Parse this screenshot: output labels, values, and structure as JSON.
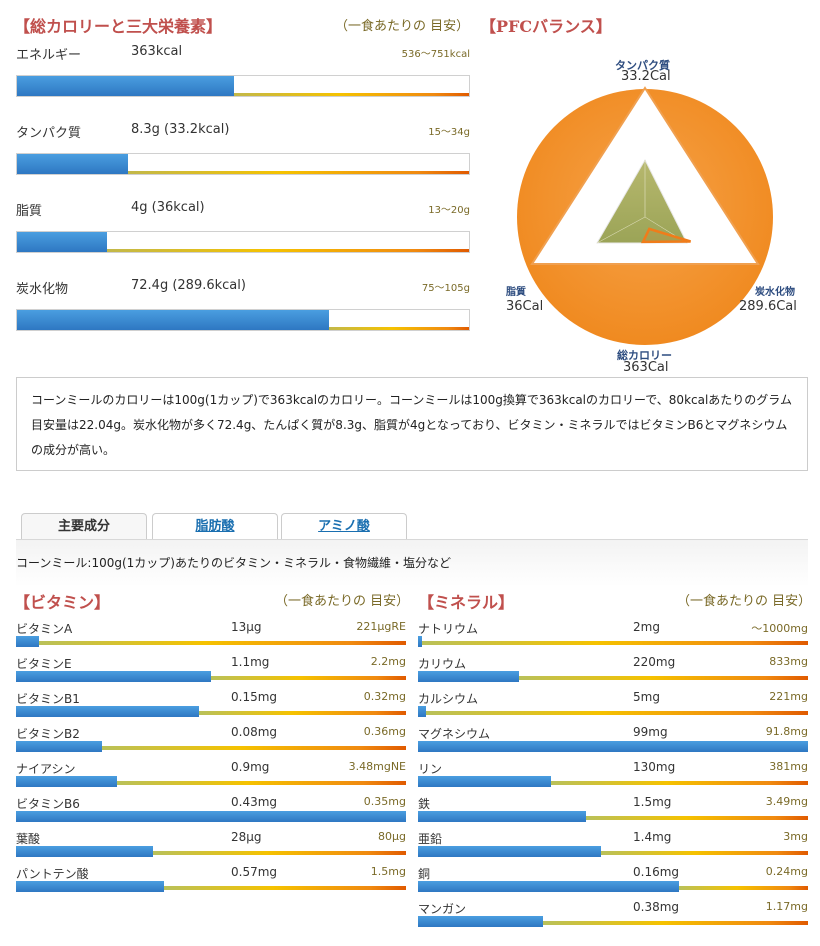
{
  "macro": {
    "title": "【総カロリーと三大栄養素】",
    "per_serving": "（一食あたりの 目安）",
    "rows": [
      {
        "name": "エネルギー",
        "value": "363kcal",
        "range": "536〜751kcal",
        "fill": 0.48
      },
      {
        "name": "タンパク質",
        "value": "8.3g (33.2kcal)",
        "range": "15〜34g",
        "fill": 0.245
      },
      {
        "name": "脂質",
        "value": "4g (36kcal)",
        "range": "13〜20g",
        "fill": 0.2
      },
      {
        "name": "炭水化物",
        "value": "72.4g (289.6kcal)",
        "range": "75〜105g",
        "fill": 0.69
      }
    ]
  },
  "pfc": {
    "title": "【PFCバランス】",
    "protein_label": "タンパク質",
    "protein_value": "33.2Cal",
    "fat_label": "脂質",
    "fat_value": "36Cal",
    "carb_label": "炭水化物",
    "carb_value": "289.6Cal",
    "total_label": "総カロリー",
    "total_value": "363Cal",
    "colors": {
      "circle": "#f4952e",
      "inner": "#a7ab5c",
      "outline": "#f07c1a"
    }
  },
  "description": "コーンミールのカロリーは100g(1カップ)で363kcalのカロリー。コーンミールは100g換算で363kcalのカロリーで、80kcalあたりのグラム 目安量は22.04g。炭水化物が多く72.4g、たんぱく質が8.3g、脂質が4gとなっており、ビタミン・ミネラルではビタミンB6とマグネシウムの成分が高い。",
  "tabs": [
    {
      "label": "主要成分",
      "active": true
    },
    {
      "label": "脂肪酸",
      "active": false
    },
    {
      "label": "アミノ酸",
      "active": false
    }
  ],
  "tab_caption": "コーンミール:100g(1カップ)あたりのビタミン・ミネラル・食物繊維・塩分など",
  "vitamins": {
    "title": "【ビタミン】",
    "per_serving": "（一食あたりの 目安）",
    "rows": [
      {
        "name": "ビタミンA",
        "value": "13μg",
        "range": "221μgRE",
        "fill": 0.06
      },
      {
        "name": "ビタミンE",
        "value": "1.1mg",
        "range": "2.2mg",
        "fill": 0.5
      },
      {
        "name": "ビタミンB1",
        "value": "0.15mg",
        "range": "0.32mg",
        "fill": 0.47
      },
      {
        "name": "ビタミンB2",
        "value": "0.08mg",
        "range": "0.36mg",
        "fill": 0.22
      },
      {
        "name": "ナイアシン",
        "value": "0.9mg",
        "range": "3.48mgNE",
        "fill": 0.26
      },
      {
        "name": "ビタミンB6",
        "value": "0.43mg",
        "range": "0.35mg",
        "fill": 1.0
      },
      {
        "name": "葉酸",
        "value": "28μg",
        "range": "80μg",
        "fill": 0.35
      },
      {
        "name": "パントテン酸",
        "value": "0.57mg",
        "range": "1.5mg",
        "fill": 0.38
      }
    ]
  },
  "minerals": {
    "title": "【ミネラル】",
    "per_serving": "（一食あたりの 目安）",
    "rows": [
      {
        "name": "ナトリウム",
        "value": "2mg",
        "range": "〜1000mg",
        "fill": 0.01
      },
      {
        "name": "カリウム",
        "value": "220mg",
        "range": "833mg",
        "fill": 0.26
      },
      {
        "name": "カルシウム",
        "value": "5mg",
        "range": "221mg",
        "fill": 0.02
      },
      {
        "name": "マグネシウム",
        "value": "99mg",
        "range": "91.8mg",
        "fill": 1.0
      },
      {
        "name": "リン",
        "value": "130mg",
        "range": "381mg",
        "fill": 0.34
      },
      {
        "name": "鉄",
        "value": "1.5mg",
        "range": "3.49mg",
        "fill": 0.43
      },
      {
        "name": "亜鉛",
        "value": "1.4mg",
        "range": "3mg",
        "fill": 0.47
      },
      {
        "name": "銅",
        "value": "0.16mg",
        "range": "0.24mg",
        "fill": 0.67
      },
      {
        "name": "マンガン",
        "value": "0.38mg",
        "range": "1.17mg",
        "fill": 0.32
      }
    ]
  }
}
